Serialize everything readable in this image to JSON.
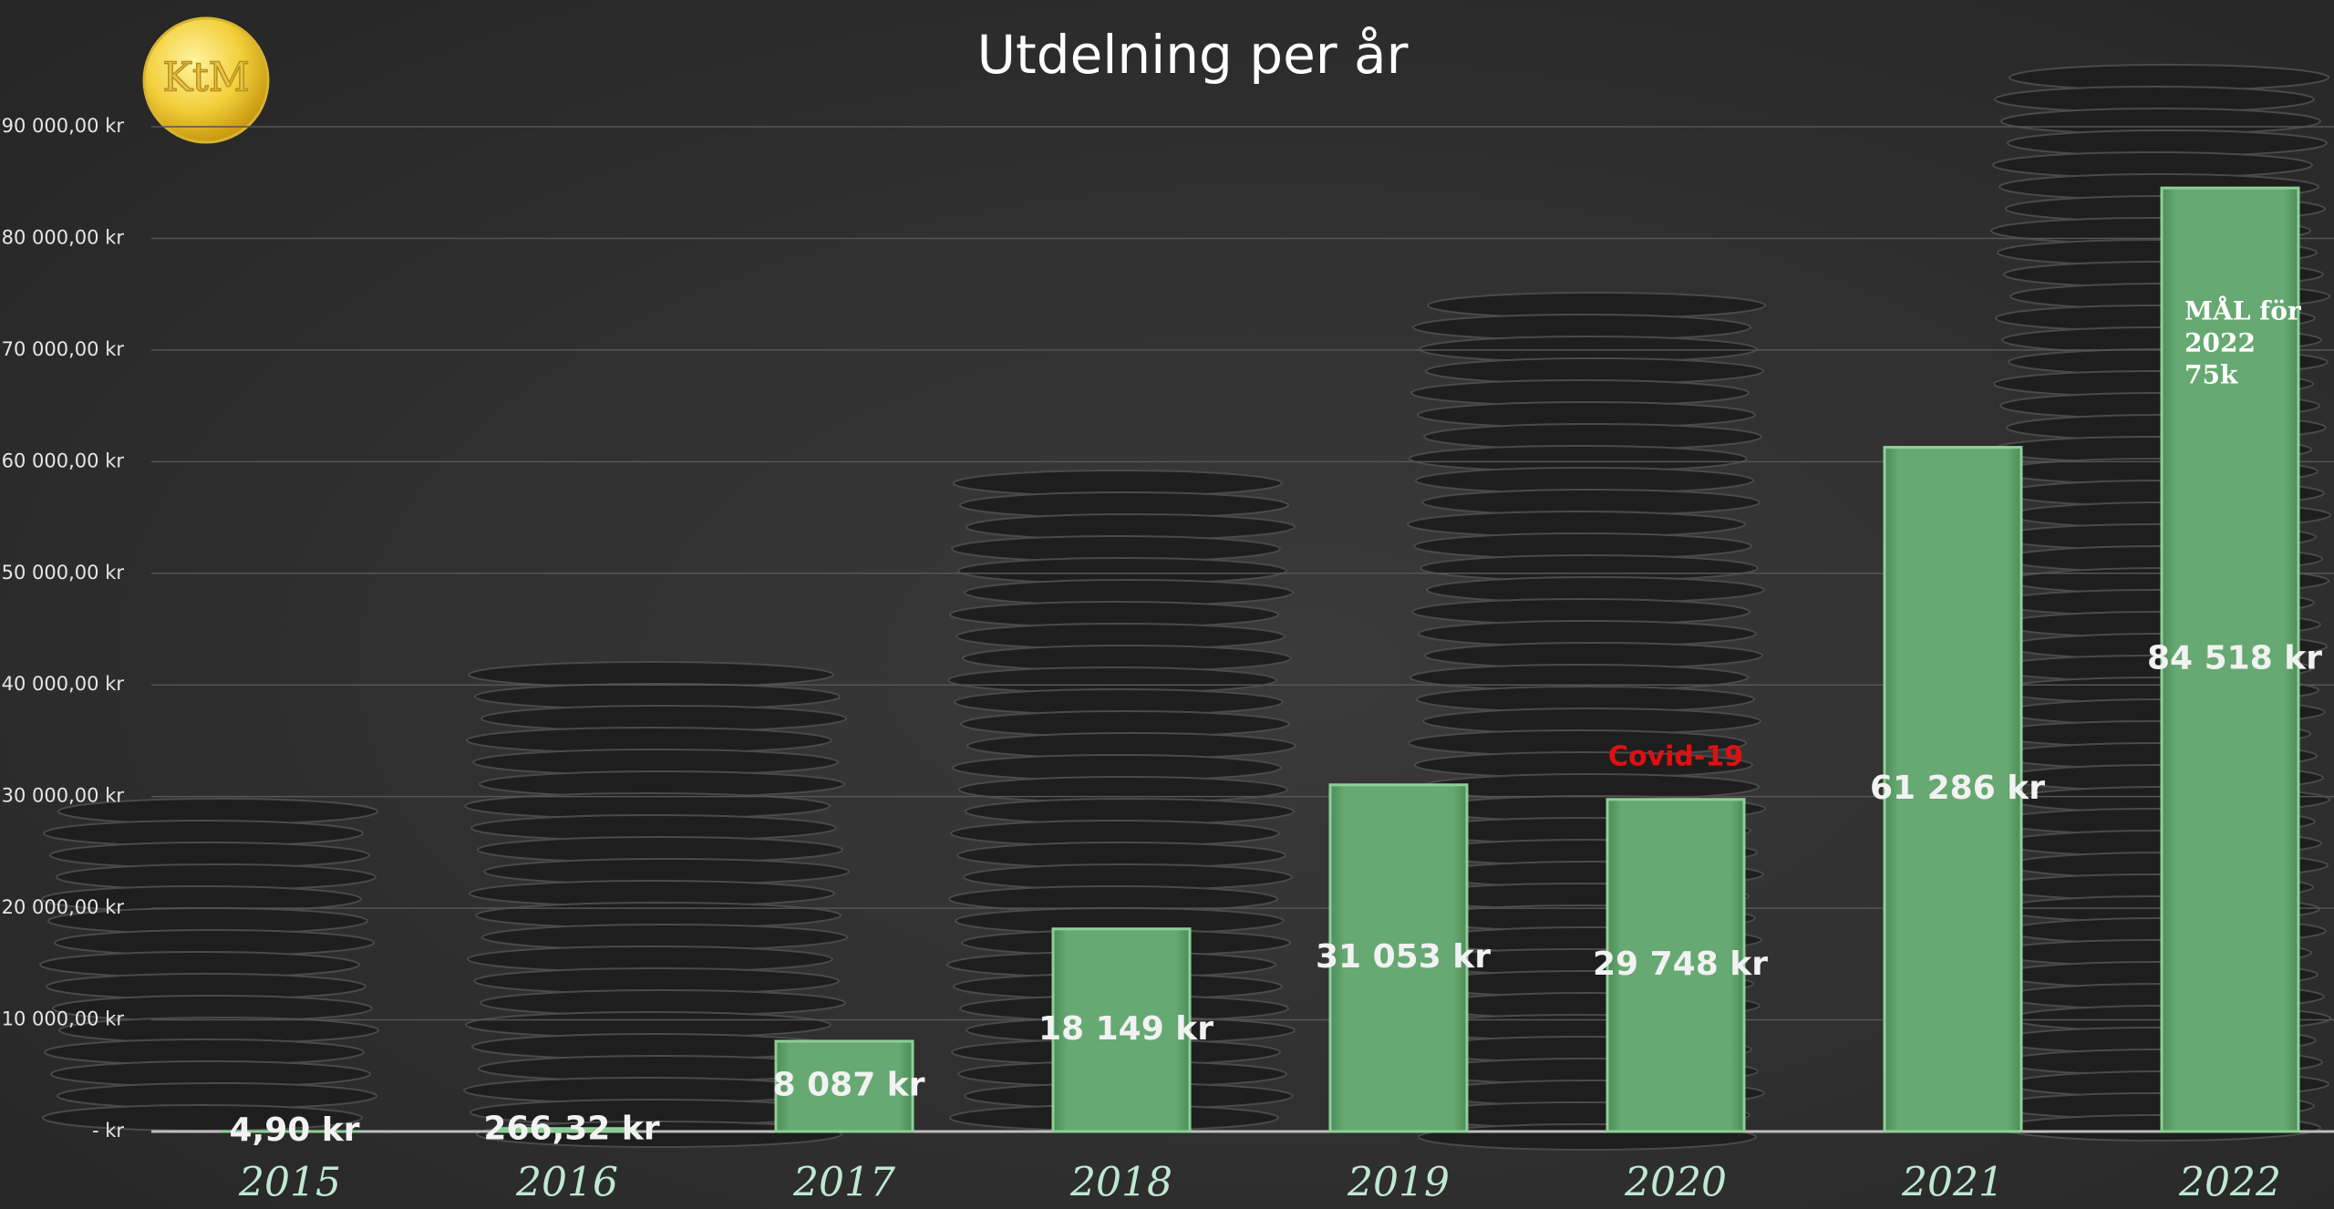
{
  "chart_data": {
    "type": "bar",
    "title": "Utdelning per år",
    "logo": "KtM",
    "categories": [
      "2015",
      "2016",
      "2017",
      "2018",
      "2019",
      "2020",
      "2021",
      "2022"
    ],
    "values": [
      4.9,
      266.32,
      8087,
      18149,
      31053,
      29748,
      61286,
      84518
    ],
    "value_labels": [
      "4,90 kr",
      "266,32 kr",
      "8 087 kr",
      "18 149 kr",
      "31 053 kr",
      "29 748 kr",
      "61 286 kr",
      "84 518 kr"
    ],
    "color": "#62a56e",
    "ylim": [
      0,
      90000
    ],
    "yticks": [
      {
        "value": 0,
        "label": "-  kr"
      },
      {
        "value": 10000,
        "label": "10 000,00 kr"
      },
      {
        "value": 20000,
        "label": "20 000,00 kr"
      },
      {
        "value": 30000,
        "label": "30 000,00 kr"
      },
      {
        "value": 40000,
        "label": "40 000,00 kr"
      },
      {
        "value": 50000,
        "label": "50 000,00 kr"
      },
      {
        "value": 60000,
        "label": "60 000,00 kr"
      },
      {
        "value": 70000,
        "label": "70 000,00 kr"
      },
      {
        "value": 80000,
        "label": "80 000,00 kr"
      },
      {
        "value": 90000,
        "label": "90 000,00 kr"
      }
    ],
    "grid": true,
    "covid_note": "Covid-19",
    "goal_note": [
      "MÅL för",
      "2022",
      "75k"
    ]
  }
}
